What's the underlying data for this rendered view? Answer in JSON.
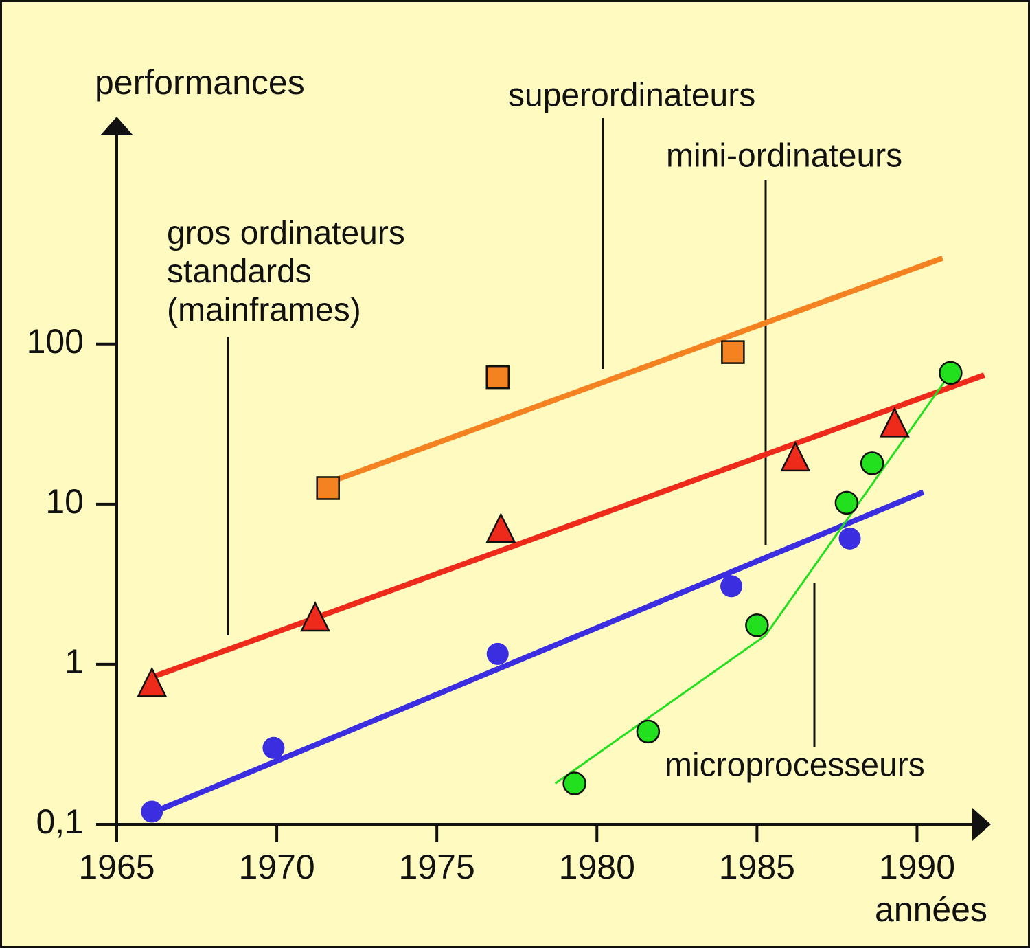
{
  "chart_data": {
    "type": "scatter",
    "y_label": "performances",
    "x_label": "années",
    "log_y": true,
    "xlim": [
      1965,
      1992.2
    ],
    "ylim": [
      0.1,
      2500
    ],
    "xticks": [
      1965,
      1970,
      1975,
      1980,
      1985,
      1990
    ],
    "yticks": [
      {
        "value": 0.1,
        "label": "0,1"
      },
      1,
      10,
      100
    ],
    "series": [
      {
        "name": "superordinateurs",
        "color": "#f58220",
        "marker": "square",
        "x": [
          1971.6,
          1976.9,
          1984.25
        ],
        "values": [
          12.6,
          62,
          89
        ],
        "trend": {
          "x": [
            1971.9,
            1990.8
          ],
          "values": [
            14.3,
            344
          ]
        }
      },
      {
        "name": "gros ordinateurs standards (mainframes)",
        "color": "#ee2a1b",
        "marker": "triangle",
        "x": [
          1966.1,
          1971.2,
          1977.0,
          1986.2,
          1989.3
        ],
        "values": [
          0.74,
          1.9,
          6.8,
          19,
          31
        ],
        "trend": {
          "x": [
            1966.1,
            1992.1
          ],
          "values": [
            0.83,
            64
          ]
        }
      },
      {
        "name": "mini-ordinateurs",
        "color": "#3b2de0",
        "marker": "dot",
        "x": [
          1966.1,
          1969.9,
          1976.9,
          1984.2,
          1987.9
        ],
        "values": [
          0.12,
          0.3,
          1.16,
          3.07,
          6.1
        ],
        "trend": {
          "x": [
            1966.1,
            1990.2
          ],
          "values": [
            0.118,
            11.9
          ]
        }
      },
      {
        "name": "microprocesseurs",
        "color": "#22e01e",
        "marker": "circle",
        "x": [
          1979.3,
          1981.6,
          1985.0,
          1987.8,
          1988.6,
          1991.05
        ],
        "values": [
          0.18,
          0.38,
          1.75,
          10.2,
          18,
          66
        ],
        "trend": {
          "x": [
            1978.7,
            1985.26,
            1990.84
          ],
          "values": [
            0.18,
            1.51,
            57.5
          ]
        }
      }
    ]
  }
}
